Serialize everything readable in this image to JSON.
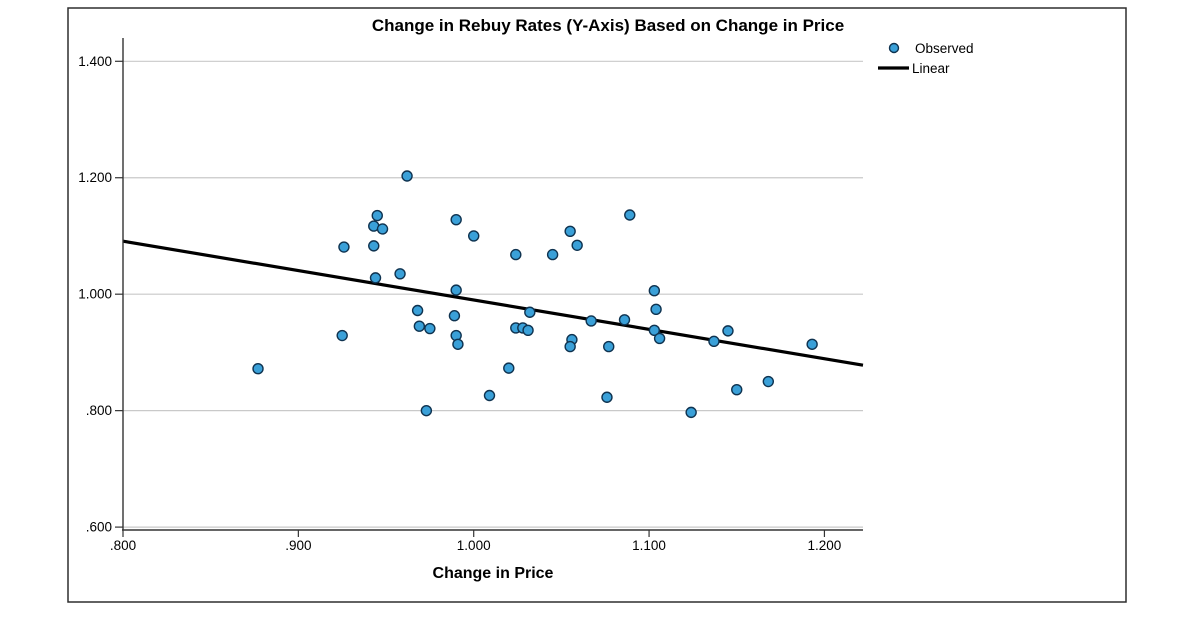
{
  "chart_data": {
    "type": "scatter",
    "title": "Change in Rebuy Rates (Y-Axis) Based on Change in Price",
    "xlabel": "Change in Price",
    "ylabel": "",
    "xlim": [
      0.8,
      1.222
    ],
    "ylim": [
      0.595,
      1.44
    ],
    "grid": "horizontal-only",
    "x_ticks": [
      {
        "label": ".800",
        "value": 0.8
      },
      {
        "label": ".900",
        "value": 0.9
      },
      {
        "label": "1.000",
        "value": 1.0
      },
      {
        "label": "1.100",
        "value": 1.1
      },
      {
        "label": "1.200",
        "value": 1.2
      }
    ],
    "y_ticks": [
      {
        "label": "1.400",
        "value": 1.4
      },
      {
        "label": "1.200",
        "value": 1.2
      },
      {
        "label": "1.000",
        "value": 1.0
      },
      {
        "label": ".800",
        "value": 0.8
      },
      {
        "label": ".600",
        "value": 0.6
      }
    ],
    "series": [
      {
        "name": "Observed",
        "type": "scatter",
        "points": [
          [
            0.877,
            0.872
          ],
          [
            0.925,
            0.929
          ],
          [
            0.926,
            1.081
          ],
          [
            0.943,
            1.117
          ],
          [
            0.945,
            1.135
          ],
          [
            0.948,
            1.112
          ],
          [
            0.943,
            1.083
          ],
          [
            0.944,
            1.028
          ],
          [
            0.958,
            1.035
          ],
          [
            0.962,
            1.203
          ],
          [
            0.968,
            0.972
          ],
          [
            0.969,
            0.945
          ],
          [
            0.975,
            0.941
          ],
          [
            0.973,
            0.8
          ],
          [
            0.99,
            1.128
          ],
          [
            1.0,
            1.1
          ],
          [
            0.99,
            1.007
          ],
          [
            0.989,
            0.963
          ],
          [
            0.99,
            0.929
          ],
          [
            0.991,
            0.914
          ],
          [
            1.009,
            0.826
          ],
          [
            1.02,
            0.873
          ],
          [
            1.024,
            1.068
          ],
          [
            1.024,
            0.942
          ],
          [
            1.028,
            0.942
          ],
          [
            1.031,
            0.938
          ],
          [
            1.032,
            0.969
          ],
          [
            1.045,
            1.068
          ],
          [
            1.055,
            1.108
          ],
          [
            1.059,
            1.084
          ],
          [
            1.056,
            0.922
          ],
          [
            1.055,
            0.91
          ],
          [
            1.067,
            0.954
          ],
          [
            1.077,
            0.91
          ],
          [
            1.076,
            0.823
          ],
          [
            1.086,
            0.956
          ],
          [
            1.089,
            1.136
          ],
          [
            1.103,
            1.006
          ],
          [
            1.104,
            0.974
          ],
          [
            1.103,
            0.938
          ],
          [
            1.106,
            0.924
          ],
          [
            1.124,
            0.797
          ],
          [
            1.137,
            0.919
          ],
          [
            1.145,
            0.937
          ],
          [
            1.15,
            0.836
          ],
          [
            1.168,
            0.85
          ],
          [
            1.193,
            0.914
          ]
        ]
      },
      {
        "name": "Linear",
        "type": "line",
        "endpoints": [
          [
            0.8,
            1.091
          ],
          [
            1.222,
            0.878
          ]
        ]
      }
    ],
    "legend": {
      "position": "top-right",
      "entries": [
        {
          "label": "Observed",
          "marker": "dot"
        },
        {
          "label": "Linear",
          "marker": "line"
        }
      ]
    }
  },
  "colors": {
    "dot_fill": "#3aa0d8",
    "dot_stroke": "#0f3350",
    "trend_line": "#000000",
    "gridline": "#c9c9c9",
    "axis": "#333333",
    "frame_border": "#2e2e2e",
    "background": "#ffffff"
  }
}
